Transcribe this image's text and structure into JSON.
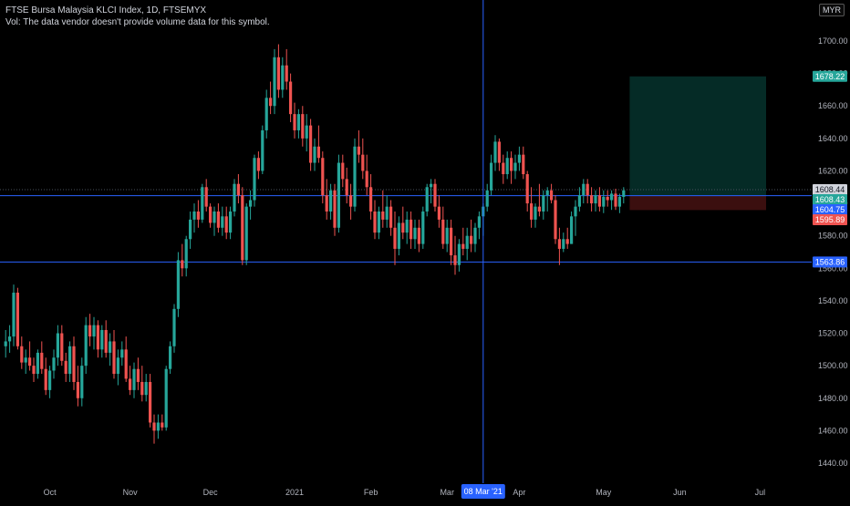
{
  "header": {
    "title": "FTSE Bursa Malaysia KLCI Index, 1D, FTSEMYX",
    "volume_note": "Vol: The data vendor doesn't provide volume data for this symbol."
  },
  "currency_badge": "MYR",
  "crosshair_date_label": "08 Mar '21",
  "colors": {
    "background": "#000000",
    "up": "#26a69a",
    "down": "#ef5350",
    "hline": "#2962ff",
    "profit_zone": "#052b26",
    "loss_zone": "#3b0f0f"
  },
  "price_tags": [
    {
      "label": "1678.22",
      "value": 1678.22,
      "bg": "#26a69a",
      "fg": "#ffffff"
    },
    {
      "label": "1608.44",
      "value": 1608.44,
      "bg": "#d1d4dc",
      "fg": "#131722"
    },
    {
      "label": "1608.43",
      "value": 1608.43,
      "bg": "#26a69a",
      "fg": "#ffffff"
    },
    {
      "label": "1604.75",
      "value": 1604.75,
      "bg": "#2962ff",
      "fg": "#ffffff"
    },
    {
      "label": "1595.89",
      "value": 1595.89,
      "bg": "#ef5350",
      "fg": "#ffffff"
    },
    {
      "label": "1563.86",
      "value": 1563.86,
      "bg": "#2962ff",
      "fg": "#ffffff"
    }
  ],
  "chart_data": {
    "type": "candlestick",
    "title": "FTSE Bursa Malaysia KLCI Index, 1D, FTSEMYX",
    "ylim": [
      1430,
      1720
    ],
    "y_ticks": [
      "1440.00",
      "1460.00",
      "1480.00",
      "1500.00",
      "1520.00",
      "1540.00",
      "1560.00",
      "1580.00",
      "1600.00",
      "1620.00",
      "1640.00",
      "1660.00",
      "1680.00",
      "1700.00"
    ],
    "x_ticks": [
      "Oct",
      "Nov",
      "Dec",
      "2021",
      "Feb",
      "Mar",
      "Apr",
      "May",
      "Jun",
      "Jul"
    ],
    "horizontal_lines": [
      1604.75,
      1563.86
    ],
    "dotted_line": 1608.44,
    "position": {
      "type": "long",
      "entry": 1604.75,
      "target": 1678.22,
      "stop": 1595.89,
      "start_bar": 156,
      "end_bar": 189
    },
    "crosshair_bar": 119,
    "candles": [
      {
        "o": 1512,
        "h": 1522,
        "l": 1505,
        "c": 1515
      },
      {
        "o": 1515,
        "h": 1525,
        "l": 1508,
        "c": 1518
      },
      {
        "o": 1518,
        "h": 1550,
        "l": 1512,
        "c": 1545
      },
      {
        "o": 1545,
        "h": 1548,
        "l": 1510,
        "c": 1512
      },
      {
        "o": 1512,
        "h": 1518,
        "l": 1498,
        "c": 1502
      },
      {
        "o": 1502,
        "h": 1510,
        "l": 1495,
        "c": 1505
      },
      {
        "o": 1505,
        "h": 1515,
        "l": 1497,
        "c": 1500
      },
      {
        "o": 1500,
        "h": 1505,
        "l": 1490,
        "c": 1495
      },
      {
        "o": 1495,
        "h": 1510,
        "l": 1492,
        "c": 1508
      },
      {
        "o": 1508,
        "h": 1515,
        "l": 1495,
        "c": 1498
      },
      {
        "o": 1498,
        "h": 1505,
        "l": 1482,
        "c": 1485
      },
      {
        "o": 1485,
        "h": 1500,
        "l": 1480,
        "c": 1497
      },
      {
        "o": 1497,
        "h": 1510,
        "l": 1492,
        "c": 1505
      },
      {
        "o": 1505,
        "h": 1525,
        "l": 1500,
        "c": 1520
      },
      {
        "o": 1520,
        "h": 1525,
        "l": 1500,
        "c": 1503
      },
      {
        "o": 1503,
        "h": 1508,
        "l": 1490,
        "c": 1495
      },
      {
        "o": 1495,
        "h": 1515,
        "l": 1490,
        "c": 1512
      },
      {
        "o": 1512,
        "h": 1518,
        "l": 1485,
        "c": 1490
      },
      {
        "o": 1490,
        "h": 1500,
        "l": 1475,
        "c": 1480
      },
      {
        "o": 1480,
        "h": 1505,
        "l": 1475,
        "c": 1500
      },
      {
        "o": 1500,
        "h": 1530,
        "l": 1495,
        "c": 1525
      },
      {
        "o": 1525,
        "h": 1532,
        "l": 1512,
        "c": 1518
      },
      {
        "o": 1518,
        "h": 1530,
        "l": 1510,
        "c": 1525
      },
      {
        "o": 1525,
        "h": 1528,
        "l": 1505,
        "c": 1510
      },
      {
        "o": 1510,
        "h": 1525,
        "l": 1505,
        "c": 1522
      },
      {
        "o": 1522,
        "h": 1528,
        "l": 1505,
        "c": 1508
      },
      {
        "o": 1508,
        "h": 1520,
        "l": 1500,
        "c": 1515
      },
      {
        "o": 1515,
        "h": 1522,
        "l": 1492,
        "c": 1495
      },
      {
        "o": 1495,
        "h": 1510,
        "l": 1488,
        "c": 1505
      },
      {
        "o": 1505,
        "h": 1515,
        "l": 1500,
        "c": 1510
      },
      {
        "o": 1510,
        "h": 1518,
        "l": 1490,
        "c": 1492
      },
      {
        "o": 1492,
        "h": 1500,
        "l": 1482,
        "c": 1485
      },
      {
        "o": 1485,
        "h": 1502,
        "l": 1480,
        "c": 1498
      },
      {
        "o": 1498,
        "h": 1505,
        "l": 1485,
        "c": 1490
      },
      {
        "o": 1490,
        "h": 1500,
        "l": 1478,
        "c": 1482
      },
      {
        "o": 1482,
        "h": 1495,
        "l": 1478,
        "c": 1490
      },
      {
        "o": 1490,
        "h": 1495,
        "l": 1462,
        "c": 1465
      },
      {
        "o": 1465,
        "h": 1470,
        "l": 1452,
        "c": 1460
      },
      {
        "o": 1460,
        "h": 1470,
        "l": 1455,
        "c": 1465
      },
      {
        "o": 1465,
        "h": 1470,
        "l": 1460,
        "c": 1462
      },
      {
        "o": 1462,
        "h": 1500,
        "l": 1460,
        "c": 1498
      },
      {
        "o": 1498,
        "h": 1515,
        "l": 1495,
        "c": 1512
      },
      {
        "o": 1512,
        "h": 1538,
        "l": 1508,
        "c": 1535
      },
      {
        "o": 1535,
        "h": 1570,
        "l": 1530,
        "c": 1565
      },
      {
        "o": 1565,
        "h": 1575,
        "l": 1555,
        "c": 1560
      },
      {
        "o": 1560,
        "h": 1580,
        "l": 1555,
        "c": 1578
      },
      {
        "o": 1578,
        "h": 1595,
        "l": 1572,
        "c": 1590
      },
      {
        "o": 1590,
        "h": 1600,
        "l": 1582,
        "c": 1595
      },
      {
        "o": 1595,
        "h": 1602,
        "l": 1585,
        "c": 1590
      },
      {
        "o": 1590,
        "h": 1612,
        "l": 1588,
        "c": 1610
      },
      {
        "o": 1610,
        "h": 1615,
        "l": 1595,
        "c": 1598
      },
      {
        "o": 1598,
        "h": 1600,
        "l": 1585,
        "c": 1588
      },
      {
        "o": 1588,
        "h": 1598,
        "l": 1580,
        "c": 1595
      },
      {
        "o": 1595,
        "h": 1600,
        "l": 1582,
        "c": 1585
      },
      {
        "o": 1585,
        "h": 1598,
        "l": 1580,
        "c": 1592
      },
      {
        "o": 1592,
        "h": 1598,
        "l": 1578,
        "c": 1582
      },
      {
        "o": 1582,
        "h": 1598,
        "l": 1578,
        "c": 1595
      },
      {
        "o": 1595,
        "h": 1615,
        "l": 1592,
        "c": 1612
      },
      {
        "o": 1612,
        "h": 1618,
        "l": 1600,
        "c": 1605
      },
      {
        "o": 1605,
        "h": 1610,
        "l": 1562,
        "c": 1565
      },
      {
        "o": 1565,
        "h": 1600,
        "l": 1562,
        "c": 1598
      },
      {
        "o": 1598,
        "h": 1608,
        "l": 1590,
        "c": 1602
      },
      {
        "o": 1602,
        "h": 1630,
        "l": 1598,
        "c": 1628
      },
      {
        "o": 1628,
        "h": 1632,
        "l": 1615,
        "c": 1620
      },
      {
        "o": 1620,
        "h": 1648,
        "l": 1618,
        "c": 1645
      },
      {
        "o": 1645,
        "h": 1670,
        "l": 1640,
        "c": 1665
      },
      {
        "o": 1665,
        "h": 1675,
        "l": 1655,
        "c": 1660
      },
      {
        "o": 1660,
        "h": 1695,
        "l": 1655,
        "c": 1690
      },
      {
        "o": 1690,
        "h": 1698,
        "l": 1665,
        "c": 1670
      },
      {
        "o": 1670,
        "h": 1690,
        "l": 1665,
        "c": 1685
      },
      {
        "o": 1685,
        "h": 1695,
        "l": 1670,
        "c": 1675
      },
      {
        "o": 1675,
        "h": 1680,
        "l": 1650,
        "c": 1655
      },
      {
        "o": 1655,
        "h": 1662,
        "l": 1640,
        "c": 1645
      },
      {
        "o": 1645,
        "h": 1658,
        "l": 1640,
        "c": 1655
      },
      {
        "o": 1655,
        "h": 1660,
        "l": 1635,
        "c": 1640
      },
      {
        "o": 1640,
        "h": 1655,
        "l": 1632,
        "c": 1648
      },
      {
        "o": 1648,
        "h": 1652,
        "l": 1620,
        "c": 1625
      },
      {
        "o": 1625,
        "h": 1640,
        "l": 1620,
        "c": 1635
      },
      {
        "o": 1635,
        "h": 1648,
        "l": 1625,
        "c": 1628
      },
      {
        "o": 1628,
        "h": 1632,
        "l": 1600,
        "c": 1605
      },
      {
        "o": 1605,
        "h": 1615,
        "l": 1590,
        "c": 1595
      },
      {
        "o": 1595,
        "h": 1612,
        "l": 1590,
        "c": 1608
      },
      {
        "o": 1608,
        "h": 1612,
        "l": 1580,
        "c": 1585
      },
      {
        "o": 1585,
        "h": 1630,
        "l": 1582,
        "c": 1625
      },
      {
        "o": 1625,
        "h": 1630,
        "l": 1610,
        "c": 1615
      },
      {
        "o": 1615,
        "h": 1622,
        "l": 1600,
        "c": 1605
      },
      {
        "o": 1605,
        "h": 1612,
        "l": 1590,
        "c": 1598
      },
      {
        "o": 1598,
        "h": 1640,
        "l": 1595,
        "c": 1635
      },
      {
        "o": 1635,
        "h": 1645,
        "l": 1625,
        "c": 1630
      },
      {
        "o": 1630,
        "h": 1640,
        "l": 1615,
        "c": 1620
      },
      {
        "o": 1620,
        "h": 1630,
        "l": 1605,
        "c": 1610
      },
      {
        "o": 1610,
        "h": 1618,
        "l": 1590,
        "c": 1595
      },
      {
        "o": 1595,
        "h": 1602,
        "l": 1578,
        "c": 1582
      },
      {
        "o": 1582,
        "h": 1598,
        "l": 1578,
        "c": 1595
      },
      {
        "o": 1595,
        "h": 1608,
        "l": 1585,
        "c": 1590
      },
      {
        "o": 1590,
        "h": 1605,
        "l": 1585,
        "c": 1598
      },
      {
        "o": 1598,
        "h": 1602,
        "l": 1580,
        "c": 1585
      },
      {
        "o": 1585,
        "h": 1595,
        "l": 1562,
        "c": 1572
      },
      {
        "o": 1572,
        "h": 1592,
        "l": 1568,
        "c": 1588
      },
      {
        "o": 1588,
        "h": 1598,
        "l": 1578,
        "c": 1582
      },
      {
        "o": 1582,
        "h": 1595,
        "l": 1575,
        "c": 1590
      },
      {
        "o": 1590,
        "h": 1595,
        "l": 1572,
        "c": 1578
      },
      {
        "o": 1578,
        "h": 1590,
        "l": 1572,
        "c": 1585
      },
      {
        "o": 1585,
        "h": 1590,
        "l": 1570,
        "c": 1575
      },
      {
        "o": 1575,
        "h": 1598,
        "l": 1572,
        "c": 1595
      },
      {
        "o": 1595,
        "h": 1612,
        "l": 1592,
        "c": 1610
      },
      {
        "o": 1610,
        "h": 1615,
        "l": 1600,
        "c": 1612
      },
      {
        "o": 1612,
        "h": 1615,
        "l": 1595,
        "c": 1598
      },
      {
        "o": 1598,
        "h": 1605,
        "l": 1585,
        "c": 1590
      },
      {
        "o": 1590,
        "h": 1598,
        "l": 1572,
        "c": 1575
      },
      {
        "o": 1575,
        "h": 1590,
        "l": 1570,
        "c": 1585
      },
      {
        "o": 1585,
        "h": 1590,
        "l": 1562,
        "c": 1568
      },
      {
        "o": 1568,
        "h": 1580,
        "l": 1556,
        "c": 1562
      },
      {
        "o": 1562,
        "h": 1578,
        "l": 1558,
        "c": 1575
      },
      {
        "o": 1575,
        "h": 1585,
        "l": 1568,
        "c": 1572
      },
      {
        "o": 1572,
        "h": 1585,
        "l": 1565,
        "c": 1580
      },
      {
        "o": 1580,
        "h": 1590,
        "l": 1570,
        "c": 1575
      },
      {
        "o": 1575,
        "h": 1588,
        "l": 1570,
        "c": 1585
      },
      {
        "o": 1585,
        "h": 1595,
        "l": 1578,
        "c": 1592
      },
      {
        "o": 1592,
        "h": 1600,
        "l": 1580,
        "c": 1598
      },
      {
        "o": 1598,
        "h": 1612,
        "l": 1595,
        "c": 1608
      },
      {
        "o": 1608,
        "h": 1630,
        "l": 1605,
        "c": 1625
      },
      {
        "o": 1625,
        "h": 1642,
        "l": 1620,
        "c": 1638
      },
      {
        "o": 1638,
        "h": 1640,
        "l": 1620,
        "c": 1625
      },
      {
        "o": 1625,
        "h": 1630,
        "l": 1612,
        "c": 1618
      },
      {
        "o": 1618,
        "h": 1632,
        "l": 1615,
        "c": 1628
      },
      {
        "o": 1628,
        "h": 1632,
        "l": 1612,
        "c": 1620
      },
      {
        "o": 1620,
        "h": 1630,
        "l": 1615,
        "c": 1625
      },
      {
        "o": 1625,
        "h": 1635,
        "l": 1620,
        "c": 1630
      },
      {
        "o": 1630,
        "h": 1635,
        "l": 1615,
        "c": 1618
      },
      {
        "o": 1618,
        "h": 1620,
        "l": 1595,
        "c": 1600
      },
      {
        "o": 1600,
        "h": 1610,
        "l": 1585,
        "c": 1590
      },
      {
        "o": 1590,
        "h": 1600,
        "l": 1585,
        "c": 1598
      },
      {
        "o": 1598,
        "h": 1612,
        "l": 1592,
        "c": 1595
      },
      {
        "o": 1595,
        "h": 1608,
        "l": 1590,
        "c": 1605
      },
      {
        "o": 1605,
        "h": 1610,
        "l": 1595,
        "c": 1608
      },
      {
        "o": 1608,
        "h": 1612,
        "l": 1600,
        "c": 1602
      },
      {
        "o": 1602,
        "h": 1605,
        "l": 1575,
        "c": 1578
      },
      {
        "o": 1578,
        "h": 1585,
        "l": 1562,
        "c": 1572
      },
      {
        "o": 1572,
        "h": 1582,
        "l": 1570,
        "c": 1578
      },
      {
        "o": 1578,
        "h": 1585,
        "l": 1572,
        "c": 1575
      },
      {
        "o": 1575,
        "h": 1595,
        "l": 1575,
        "c": 1592
      },
      {
        "o": 1592,
        "h": 1602,
        "l": 1580,
        "c": 1598
      },
      {
        "o": 1598,
        "h": 1610,
        "l": 1595,
        "c": 1605
      },
      {
        "o": 1605,
        "h": 1615,
        "l": 1600,
        "c": 1612
      },
      {
        "o": 1612,
        "h": 1615,
        "l": 1600,
        "c": 1605
      },
      {
        "o": 1605,
        "h": 1610,
        "l": 1595,
        "c": 1600
      },
      {
        "o": 1600,
        "h": 1608,
        "l": 1595,
        "c": 1605
      },
      {
        "o": 1605,
        "h": 1610,
        "l": 1595,
        "c": 1598
      },
      {
        "o": 1598,
        "h": 1608,
        "l": 1594,
        "c": 1604
      },
      {
        "o": 1604,
        "h": 1608,
        "l": 1598,
        "c": 1602
      },
      {
        "o": 1602,
        "h": 1608,
        "l": 1596,
        "c": 1606
      },
      {
        "o": 1606,
        "h": 1609,
        "l": 1596,
        "c": 1598
      },
      {
        "o": 1598,
        "h": 1606,
        "l": 1594,
        "c": 1604
      },
      {
        "o": 1604,
        "h": 1610,
        "l": 1600,
        "c": 1608
      }
    ]
  }
}
